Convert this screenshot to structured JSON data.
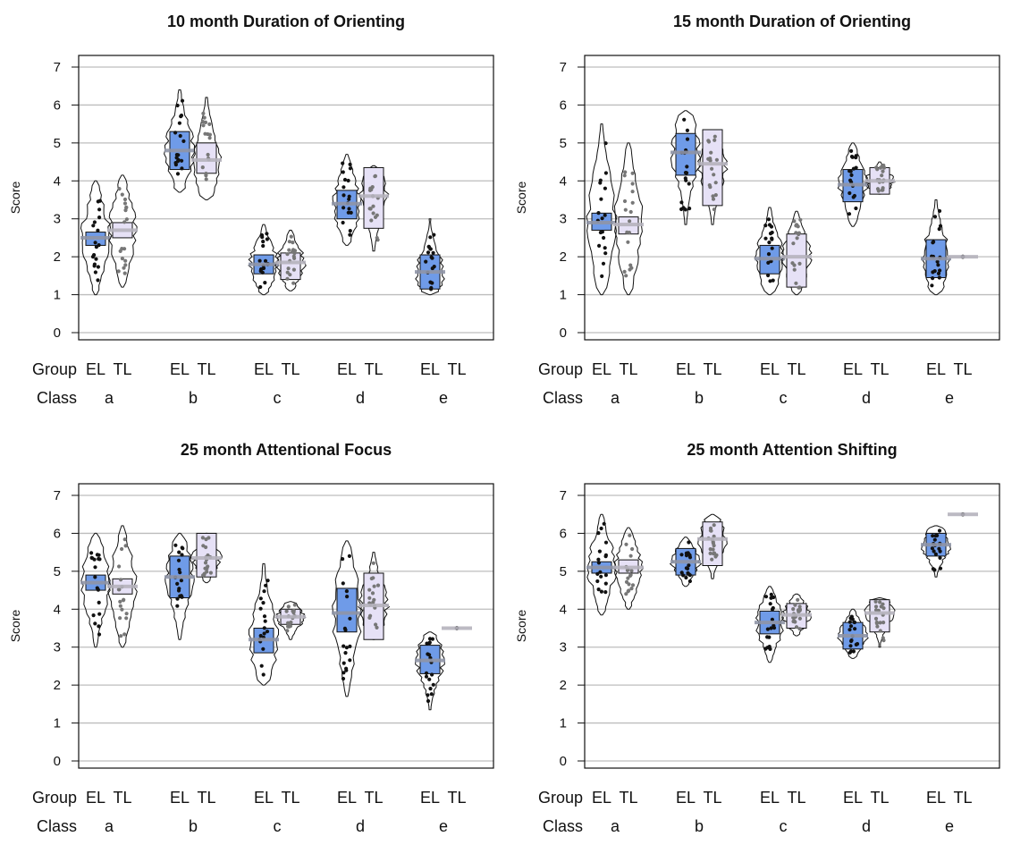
{
  "colors": {
    "el_fill": "#6f9be8",
    "tl_fill": "#e6e1f6",
    "el_bar": "#8f95a6",
    "tl_bar": "#b5b3bd",
    "grid": "#bdbdbd",
    "el_point": "#111111",
    "tl_point": "#777777"
  },
  "labels": {
    "group": "Group",
    "class": "Class",
    "group_levels": [
      "EL",
      "TL"
    ]
  },
  "chart_data": [
    {
      "type": "pirate",
      "title": "10 month Duration of Orienting",
      "ylabel": "Score",
      "ylim": [
        0,
        7
      ],
      "yticks": [
        0,
        1,
        2,
        3,
        4,
        5,
        6,
        7
      ],
      "grid": true,
      "categories": [
        "a",
        "b",
        "c",
        "d",
        "e"
      ],
      "series": [
        {
          "name": "EL",
          "mean": [
            2.5,
            4.8,
            1.8,
            3.4,
            1.6
          ],
          "hdi": [
            [
              2.3,
              2.65
            ],
            [
              4.3,
              5.3
            ],
            [
              1.55,
              2.05
            ],
            [
              3.0,
              3.75
            ],
            [
              1.15,
              2.05
            ]
          ],
          "range": [
            [
              1.0,
              4.0
            ],
            [
              3.7,
              6.4
            ],
            [
              1.0,
              2.85
            ],
            [
              2.3,
              4.7
            ],
            [
              1.0,
              3.0
            ]
          ]
        },
        {
          "name": "TL",
          "mean": [
            2.7,
            4.55,
            1.85,
            3.6,
            null
          ],
          "hdi": [
            [
              2.5,
              2.9
            ],
            [
              4.2,
              5.0
            ],
            [
              1.4,
              2.1
            ],
            [
              2.75,
              4.35
            ],
            null
          ],
          "range": [
            [
              1.2,
              4.15
            ],
            [
              3.5,
              6.2
            ],
            [
              1.1,
              2.7
            ],
            [
              2.15,
              4.4
            ],
            null
          ]
        }
      ]
    },
    {
      "type": "pirate",
      "title": "15 month Duration of Orienting",
      "ylabel": "Score",
      "ylim": [
        0,
        7
      ],
      "yticks": [
        0,
        1,
        2,
        3,
        4,
        5,
        6,
        7
      ],
      "grid": true,
      "categories": [
        "a",
        "b",
        "c",
        "d",
        "e"
      ],
      "series": [
        {
          "name": "EL",
          "mean": [
            2.9,
            4.75,
            1.95,
            3.9,
            1.95
          ],
          "hdi": [
            [
              2.7,
              3.15
            ],
            [
              4.15,
              5.25
            ],
            [
              1.55,
              2.3
            ],
            [
              3.45,
              4.3
            ],
            [
              1.45,
              2.45
            ]
          ],
          "range": [
            [
              1.0,
              5.5
            ],
            [
              2.85,
              5.85
            ],
            [
              1.0,
              3.3
            ],
            [
              2.8,
              5.0
            ],
            [
              1.0,
              3.5
            ]
          ]
        },
        {
          "name": "TL",
          "mean": [
            2.85,
            4.45,
            2.0,
            4.0,
            2.0
          ],
          "hdi": [
            [
              2.6,
              3.05
            ],
            [
              3.35,
              5.35
            ],
            [
              1.2,
              2.6
            ],
            [
              3.65,
              4.35
            ],
            [
              2.0,
              2.0
            ]
          ],
          "range": [
            [
              1.0,
              5.0
            ],
            [
              2.85,
              5.35
            ],
            [
              1.0,
              3.2
            ],
            [
              3.65,
              4.5
            ],
            [
              2.0,
              2.0
            ]
          ]
        }
      ]
    },
    {
      "type": "pirate",
      "title": "25 month Attentional Focus",
      "ylabel": "Score",
      "ylim": [
        0,
        7
      ],
      "yticks": [
        0,
        1,
        2,
        3,
        4,
        5,
        6,
        7
      ],
      "grid": true,
      "categories": [
        "a",
        "b",
        "c",
        "d",
        "e"
      ],
      "series": [
        {
          "name": "EL",
          "mean": [
            4.7,
            4.85,
            3.2,
            3.9,
            2.65
          ],
          "hdi": [
            [
              4.5,
              4.9
            ],
            [
              4.3,
              5.4
            ],
            [
              2.85,
              3.5
            ],
            [
              3.4,
              4.55
            ],
            [
              2.3,
              3.05
            ]
          ],
          "range": [
            [
              3.0,
              6.0
            ],
            [
              3.2,
              6.0
            ],
            [
              2.0,
              5.2
            ],
            [
              1.7,
              5.8
            ],
            [
              1.35,
              3.4
            ]
          ]
        },
        {
          "name": "TL",
          "mean": [
            4.6,
            5.35,
            3.8,
            4.1,
            3.5
          ],
          "hdi": [
            [
              4.4,
              4.8
            ],
            [
              4.85,
              6.0
            ],
            [
              3.6,
              4.0
            ],
            [
              3.2,
              4.95
            ],
            [
              3.5,
              3.5
            ]
          ],
          "range": [
            [
              3.0,
              6.2
            ],
            [
              4.7,
              6.0
            ],
            [
              3.2,
              4.2
            ],
            [
              3.2,
              5.5
            ],
            [
              3.5,
              3.5
            ]
          ]
        }
      ]
    },
    {
      "type": "pirate",
      "title": "25 month Attention Shifting",
      "ylabel": "Score",
      "ylim": [
        0,
        7
      ],
      "yticks": [
        0,
        1,
        2,
        3,
        4,
        5,
        6,
        7
      ],
      "grid": true,
      "categories": [
        "a",
        "b",
        "c",
        "d",
        "e"
      ],
      "series": [
        {
          "name": "EL",
          "mean": [
            5.1,
            5.25,
            3.65,
            3.3,
            5.7
          ],
          "hdi": [
            [
              4.95,
              5.25
            ],
            [
              4.9,
              5.6
            ],
            [
              3.35,
              3.95
            ],
            [
              2.95,
              3.65
            ],
            [
              5.4,
              6.0
            ]
          ],
          "range": [
            [
              3.85,
              6.5
            ],
            [
              4.6,
              5.9
            ],
            [
              2.6,
              4.6
            ],
            [
              2.7,
              4.0
            ],
            [
              4.85,
              6.2
            ]
          ]
        },
        {
          "name": "TL",
          "mean": [
            5.1,
            5.85,
            3.85,
            3.9,
            6.5
          ],
          "hdi": [
            [
              4.95,
              5.3
            ],
            [
              5.15,
              6.3
            ],
            [
              3.5,
              4.15
            ],
            [
              3.4,
              4.25
            ],
            [
              6.5,
              6.5
            ]
          ],
          "range": [
            [
              4.0,
              6.15
            ],
            [
              4.8,
              6.5
            ],
            [
              3.3,
              4.4
            ],
            [
              3.0,
              4.3
            ],
            [
              6.5,
              6.5
            ]
          ]
        }
      ]
    }
  ]
}
